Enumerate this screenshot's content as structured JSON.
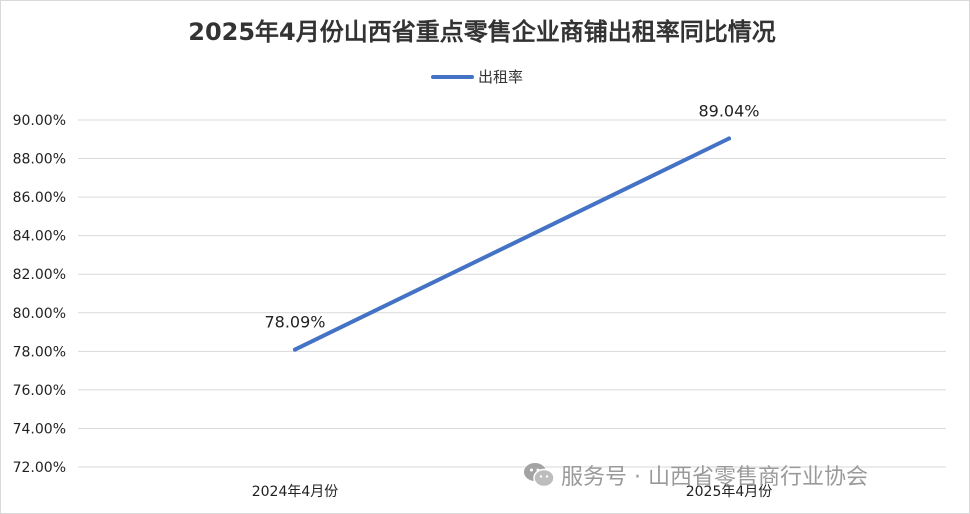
{
  "chart_data": {
    "type": "line",
    "title": "2025年4月份山西省重点零售企业商铺出租率同比情况",
    "categories": [
      "2024年4月份",
      "2025年4月份"
    ],
    "series": [
      {
        "name": "出租率",
        "values": [
          78.09,
          89.04
        ],
        "color": "#4472C4"
      }
    ],
    "data_labels": [
      "78.09%",
      "89.04%"
    ],
    "ylim": [
      72,
      90
    ],
    "y_ticks": [
      72,
      74,
      76,
      78,
      80,
      82,
      84,
      86,
      88,
      90
    ],
    "y_tick_labels": [
      "72.00%",
      "74.00%",
      "76.00%",
      "78.00%",
      "80.00%",
      "82.00%",
      "84.00%",
      "86.00%",
      "88.00%",
      "90.00%"
    ],
    "grid": true,
    "legend_position": "top"
  },
  "watermark": {
    "icon": "wechat-icon",
    "text": "服务号 · 山西省零售商行业协会"
  },
  "colors": {
    "gridline": "#d9d9d9",
    "watermark": "#9a9a9a"
  }
}
